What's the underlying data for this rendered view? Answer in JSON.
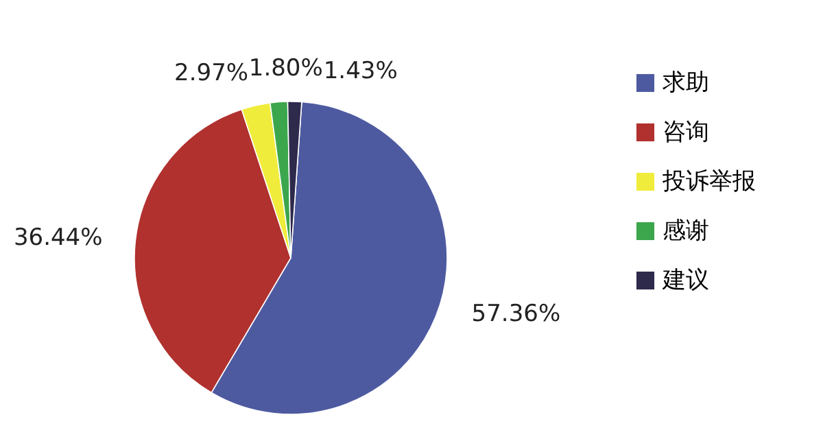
{
  "chart_data": {
    "type": "pie",
    "categories": [
      "求助",
      "咨询",
      "投诉举报",
      "感谢",
      "建议"
    ],
    "values": [
      57.36,
      36.44,
      2.97,
      1.8,
      1.43
    ],
    "colors": [
      "#4e5aa0",
      "#b0312e",
      "#f0ec3c",
      "#3ca64c",
      "#2e2a4c"
    ],
    "value_labels": [
      "57.36%",
      "36.44%",
      "2.97%",
      "1.80%",
      "1.43%"
    ],
    "legend": "right"
  }
}
